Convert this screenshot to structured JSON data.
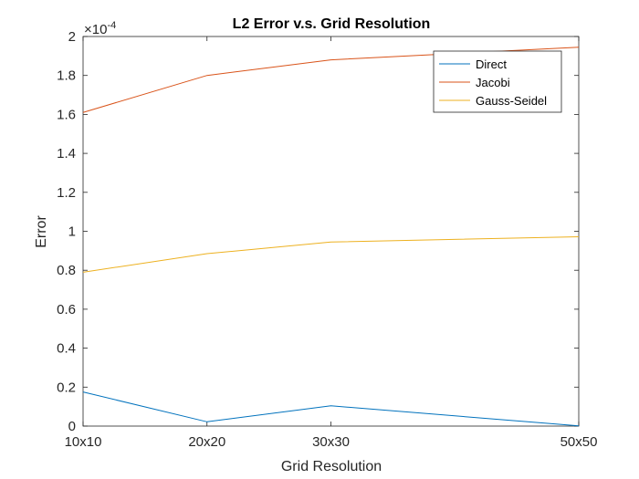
{
  "chart_data": {
    "type": "line",
    "title": "L2 Error v.s. Grid Resolution",
    "xlabel": "Grid Resolution",
    "ylabel": "Error",
    "categories": [
      "10x10",
      "20x20",
      "30x30",
      "50x50"
    ],
    "x": [
      10,
      20,
      30,
      50
    ],
    "ylim": [
      0,
      0.0002
    ],
    "yticks": [
      0,
      0.2,
      0.4,
      0.6,
      0.8,
      1,
      1.2,
      1.4,
      1.6,
      1.8,
      2
    ],
    "ytick_labels": [
      "0",
      "0.2",
      "0.4",
      "0.6",
      "0.8",
      "1",
      "1.2",
      "1.4",
      "1.6",
      "1.8",
      "2"
    ],
    "exponent_prefix": "×10",
    "exponent_power": "-4",
    "grid": false,
    "legend_position": "top-right",
    "series": [
      {
        "name": "Direct",
        "color": "#0072BD",
        "values": [
          1.75e-05,
          2.2e-06,
          1.04e-05,
          1e-07
        ]
      },
      {
        "name": "Jacobi",
        "color": "#D95319",
        "values": [
          0.000161,
          0.00018,
          0.000188,
          0.0001945
        ]
      },
      {
        "name": "Gauss-Seidel",
        "color": "#EDB120",
        "values": [
          7.9e-05,
          8.85e-05,
          9.45e-05,
          9.72e-05
        ]
      }
    ]
  }
}
